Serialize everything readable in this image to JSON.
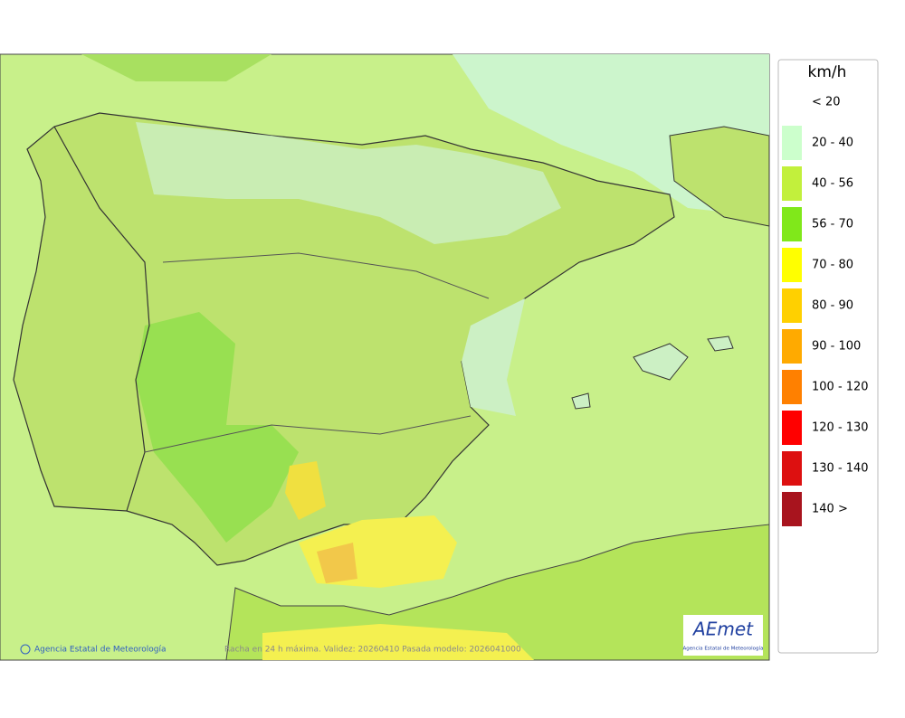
{
  "legend": {
    "title": "km/h",
    "items": [
      {
        "label": "< 20",
        "color": null
      },
      {
        "label": "20 - 40",
        "color": "#ccffcc"
      },
      {
        "label": "40 - 56",
        "color": "#c2f03c"
      },
      {
        "label": "56 - 70",
        "color": "#80e81a"
      },
      {
        "label": "70 - 80",
        "color": "#ffff00"
      },
      {
        "label": "80 - 90",
        "color": "#ffd000"
      },
      {
        "label": "90 - 100",
        "color": "#ffaa00"
      },
      {
        "label": "100 - 120",
        "color": "#ff8000"
      },
      {
        "label": "120 - 130",
        "color": "#ff0000"
      },
      {
        "label": "130 - 140",
        "color": "#dd1010"
      },
      {
        "label": "140 >",
        "color": "#a8141e"
      }
    ]
  },
  "footer": {
    "credit": "Agencia Estatal de Meteorología",
    "caption": "Racha en 24 h máxima. Validez: 20260410 Pasada modelo: 2026041000"
  },
  "logo": {
    "name": "AEmet",
    "subtitle": "Agencia Estatal de Meteorología"
  }
}
